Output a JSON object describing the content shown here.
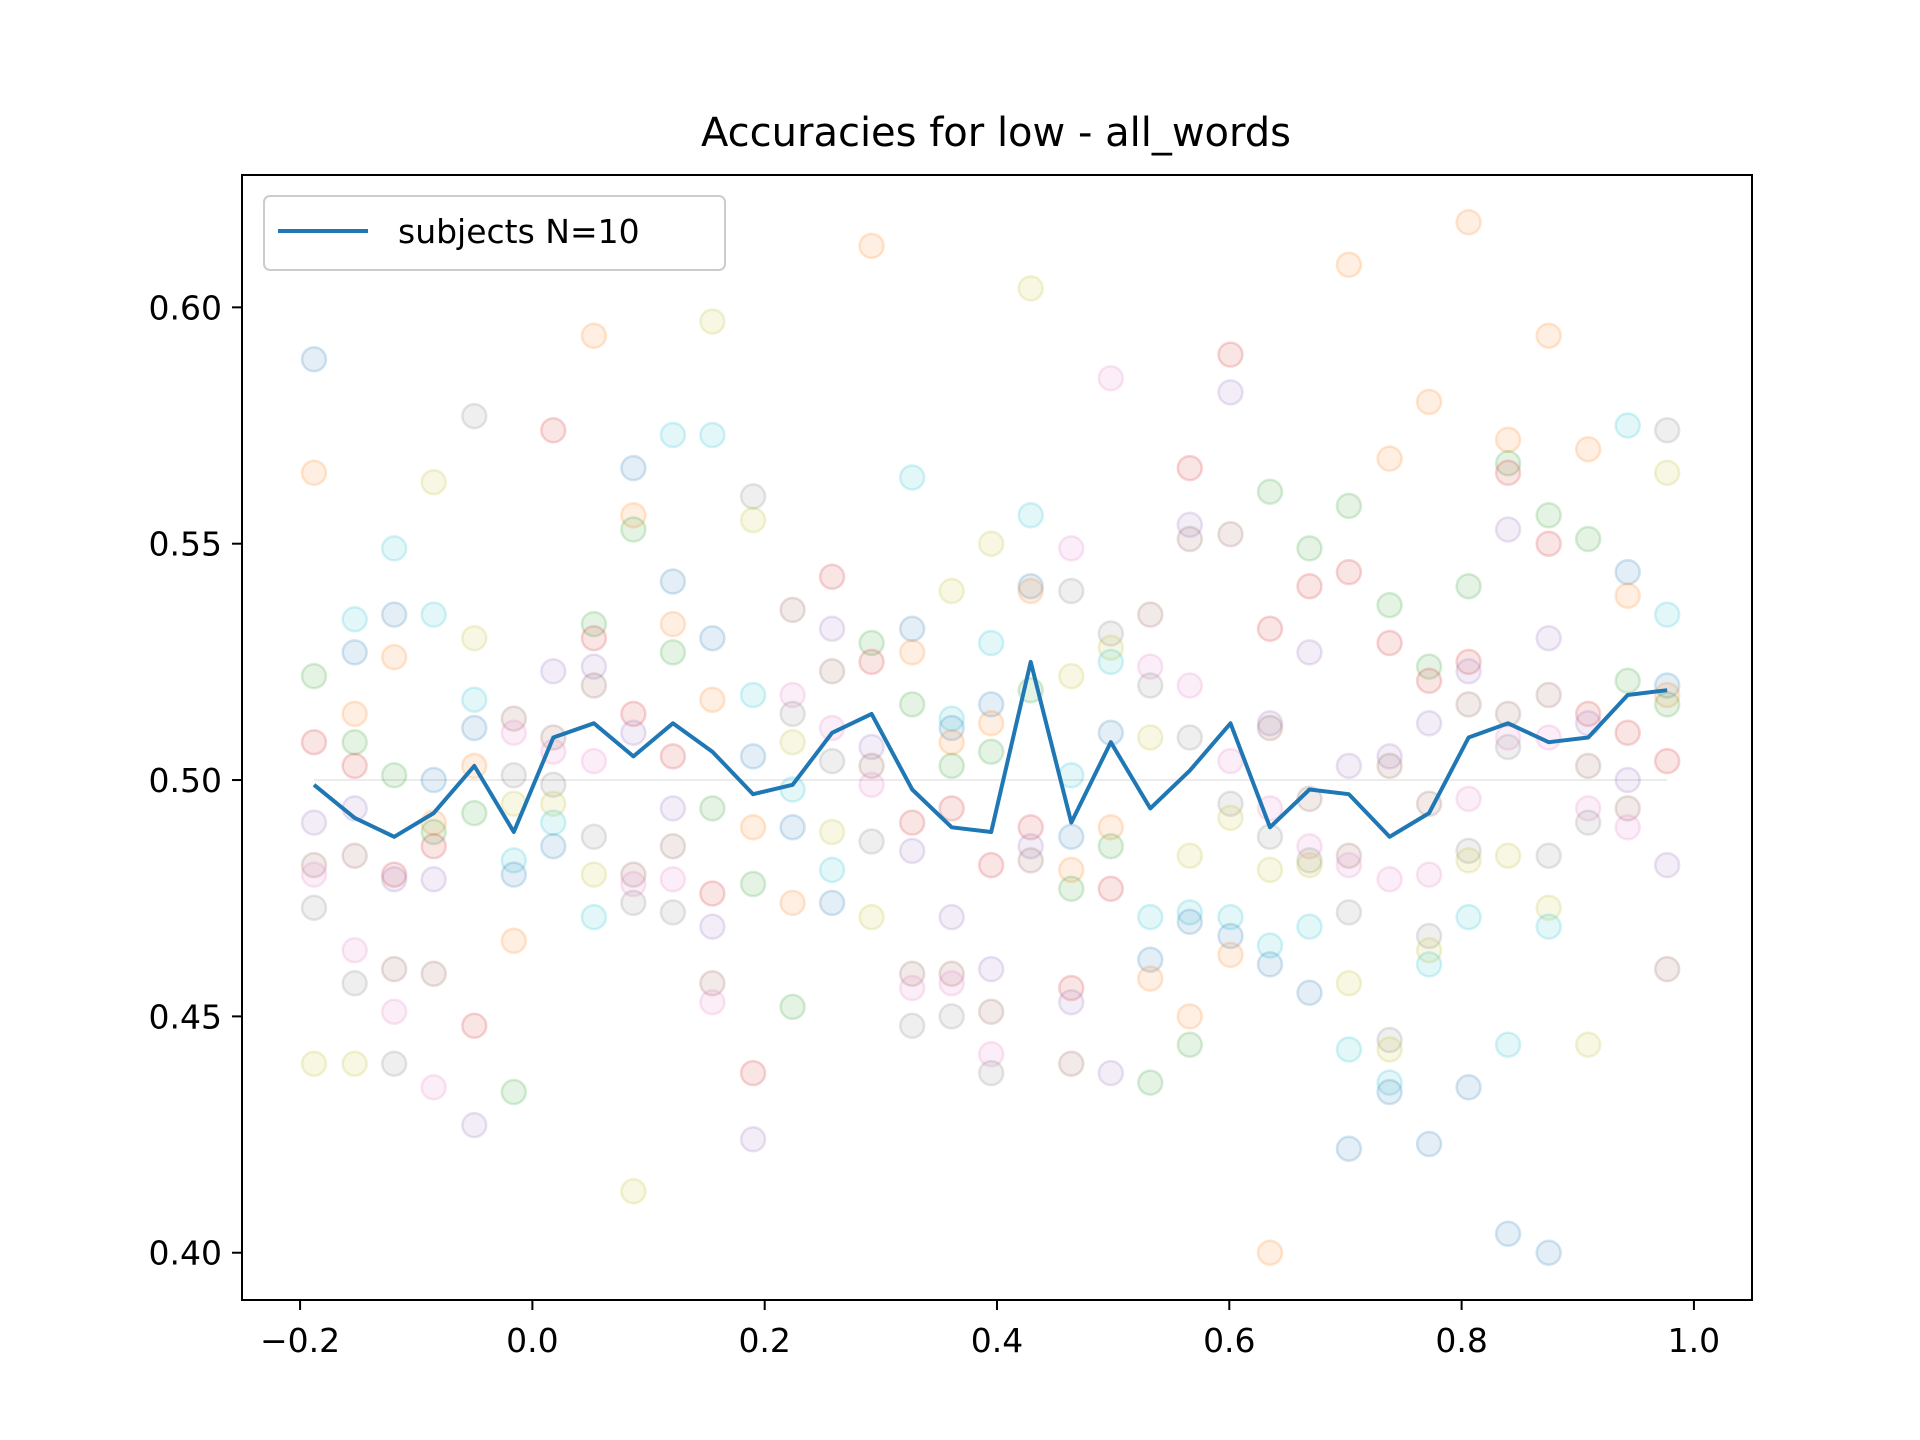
{
  "chart_data": {
    "type": "line",
    "title": "Accuracies for low - all_words",
    "xlabel": "",
    "ylabel": "",
    "xlim": [
      -0.25,
      1.05
    ],
    "ylim": [
      0.39,
      0.628
    ],
    "xticks": [
      -0.2,
      0.0,
      0.2,
      0.4,
      0.6,
      0.8,
      1.0
    ],
    "xtick_labels": [
      "−0.2",
      "0.0",
      "0.2",
      "0.4",
      "0.6",
      "0.8",
      "1.0"
    ],
    "yticks": [
      0.4,
      0.45,
      0.5,
      0.55,
      0.6
    ],
    "ytick_labels": [
      "0.40",
      "0.45",
      "0.50",
      "0.55",
      "0.60"
    ],
    "grid": false,
    "legend_position": "top-left",
    "reference_line": 0.5,
    "series": [
      {
        "name": "subjects N=10",
        "color": "#1f77b4",
        "x": [
          -0.188,
          -0.153,
          -0.119,
          -0.085,
          -0.05,
          -0.016,
          0.018,
          0.053,
          0.087,
          0.121,
          0.155,
          0.19,
          0.224,
          0.258,
          0.292,
          0.327,
          0.361,
          0.395,
          0.429,
          0.464,
          0.498,
          0.532,
          0.566,
          0.601,
          0.635,
          0.669,
          0.703,
          0.738,
          0.772,
          0.806,
          0.84,
          0.875,
          0.909,
          0.943,
          0.977
        ],
        "y": [
          0.499,
          0.492,
          0.488,
          0.493,
          0.503,
          0.489,
          0.509,
          0.512,
          0.505,
          0.512,
          0.506,
          0.497,
          0.499,
          0.51,
          0.514,
          0.498,
          0.49,
          0.489,
          0.525,
          0.491,
          0.508,
          0.494,
          0.502,
          0.512,
          0.49,
          0.498,
          0.497,
          0.488,
          0.493,
          0.509,
          0.512,
          0.508,
          0.509,
          0.518,
          0.519
        ]
      }
    ],
    "scatter_points": [
      [
        -0.188,
        0.589
      ],
      [
        -0.188,
        0.565
      ],
      [
        -0.188,
        0.522
      ],
      [
        -0.188,
        0.508
      ],
      [
        -0.188,
        0.491
      ],
      [
        -0.188,
        0.482
      ],
      [
        -0.188,
        0.48
      ],
      [
        -0.188,
        0.473
      ],
      [
        -0.188,
        0.44
      ],
      [
        -0.153,
        0.534
      ],
      [
        -0.153,
        0.527
      ],
      [
        -0.153,
        0.514
      ],
      [
        -0.153,
        0.508
      ],
      [
        -0.153,
        0.503
      ],
      [
        -0.153,
        0.494
      ],
      [
        -0.153,
        0.484
      ],
      [
        -0.153,
        0.464
      ],
      [
        -0.153,
        0.457
      ],
      [
        -0.153,
        0.44
      ],
      [
        -0.119,
        0.549
      ],
      [
        -0.119,
        0.535
      ],
      [
        -0.119,
        0.526
      ],
      [
        -0.119,
        0.501
      ],
      [
        -0.119,
        0.48
      ],
      [
        -0.119,
        0.479
      ],
      [
        -0.119,
        0.46
      ],
      [
        -0.119,
        0.451
      ],
      [
        -0.119,
        0.44
      ],
      [
        -0.085,
        0.563
      ],
      [
        -0.085,
        0.535
      ],
      [
        -0.085,
        0.5
      ],
      [
        -0.085,
        0.491
      ],
      [
        -0.085,
        0.489
      ],
      [
        -0.085,
        0.486
      ],
      [
        -0.085,
        0.479
      ],
      [
        -0.085,
        0.459
      ],
      [
        -0.085,
        0.435
      ],
      [
        -0.05,
        0.577
      ],
      [
        -0.05,
        0.53
      ],
      [
        -0.05,
        0.517
      ],
      [
        -0.05,
        0.511
      ],
      [
        -0.05,
        0.503
      ],
      [
        -0.05,
        0.493
      ],
      [
        -0.05,
        0.448
      ],
      [
        -0.05,
        0.427
      ],
      [
        -0.016,
        0.513
      ],
      [
        -0.016,
        0.51
      ],
      [
        -0.016,
        0.501
      ],
      [
        -0.016,
        0.495
      ],
      [
        -0.016,
        0.483
      ],
      [
        -0.016,
        0.48
      ],
      [
        -0.016,
        0.466
      ],
      [
        -0.016,
        0.434
      ],
      [
        0.018,
        0.574
      ],
      [
        0.018,
        0.523
      ],
      [
        0.018,
        0.509
      ],
      [
        0.018,
        0.506
      ],
      [
        0.018,
        0.499
      ],
      [
        0.018,
        0.495
      ],
      [
        0.018,
        0.491
      ],
      [
        0.018,
        0.486
      ],
      [
        0.053,
        0.594
      ],
      [
        0.053,
        0.533
      ],
      [
        0.053,
        0.53
      ],
      [
        0.053,
        0.524
      ],
      [
        0.053,
        0.52
      ],
      [
        0.053,
        0.504
      ],
      [
        0.053,
        0.488
      ],
      [
        0.053,
        0.48
      ],
      [
        0.053,
        0.471
      ],
      [
        0.087,
        0.566
      ],
      [
        0.087,
        0.556
      ],
      [
        0.087,
        0.553
      ],
      [
        0.087,
        0.514
      ],
      [
        0.087,
        0.51
      ],
      [
        0.087,
        0.48
      ],
      [
        0.087,
        0.478
      ],
      [
        0.087,
        0.474
      ],
      [
        0.087,
        0.413
      ],
      [
        0.121,
        0.573
      ],
      [
        0.121,
        0.542
      ],
      [
        0.121,
        0.533
      ],
      [
        0.121,
        0.527
      ],
      [
        0.121,
        0.505
      ],
      [
        0.121,
        0.494
      ],
      [
        0.121,
        0.486
      ],
      [
        0.121,
        0.479
      ],
      [
        0.121,
        0.472
      ],
      [
        0.155,
        0.597
      ],
      [
        0.155,
        0.573
      ],
      [
        0.155,
        0.53
      ],
      [
        0.155,
        0.517
      ],
      [
        0.155,
        0.494
      ],
      [
        0.155,
        0.476
      ],
      [
        0.155,
        0.469
      ],
      [
        0.155,
        0.457
      ],
      [
        0.155,
        0.453
      ],
      [
        0.19,
        0.56
      ],
      [
        0.19,
        0.555
      ],
      [
        0.19,
        0.518
      ],
      [
        0.19,
        0.505
      ],
      [
        0.19,
        0.49
      ],
      [
        0.19,
        0.478
      ],
      [
        0.19,
        0.438
      ],
      [
        0.19,
        0.424
      ],
      [
        0.224,
        0.536
      ],
      [
        0.224,
        0.518
      ],
      [
        0.224,
        0.514
      ],
      [
        0.224,
        0.508
      ],
      [
        0.224,
        0.498
      ],
      [
        0.224,
        0.49
      ],
      [
        0.224,
        0.474
      ],
      [
        0.224,
        0.452
      ],
      [
        0.258,
        0.543
      ],
      [
        0.258,
        0.532
      ],
      [
        0.258,
        0.523
      ],
      [
        0.258,
        0.511
      ],
      [
        0.258,
        0.504
      ],
      [
        0.258,
        0.489
      ],
      [
        0.258,
        0.481
      ],
      [
        0.258,
        0.474
      ],
      [
        0.292,
        0.613
      ],
      [
        0.292,
        0.529
      ],
      [
        0.292,
        0.525
      ],
      [
        0.292,
        0.507
      ],
      [
        0.292,
        0.503
      ],
      [
        0.292,
        0.499
      ],
      [
        0.292,
        0.487
      ],
      [
        0.292,
        0.471
      ],
      [
        0.327,
        0.564
      ],
      [
        0.327,
        0.532
      ],
      [
        0.327,
        0.527
      ],
      [
        0.327,
        0.516
      ],
      [
        0.327,
        0.491
      ],
      [
        0.327,
        0.485
      ],
      [
        0.327,
        0.459
      ],
      [
        0.327,
        0.456
      ],
      [
        0.327,
        0.448
      ],
      [
        0.361,
        0.54
      ],
      [
        0.361,
        0.513
      ],
      [
        0.361,
        0.511
      ],
      [
        0.361,
        0.508
      ],
      [
        0.361,
        0.503
      ],
      [
        0.361,
        0.494
      ],
      [
        0.361,
        0.471
      ],
      [
        0.361,
        0.459
      ],
      [
        0.361,
        0.457
      ],
      [
        0.361,
        0.45
      ],
      [
        0.395,
        0.55
      ],
      [
        0.395,
        0.529
      ],
      [
        0.395,
        0.516
      ],
      [
        0.395,
        0.512
      ],
      [
        0.395,
        0.506
      ],
      [
        0.395,
        0.482
      ],
      [
        0.395,
        0.46
      ],
      [
        0.395,
        0.451
      ],
      [
        0.395,
        0.442
      ],
      [
        0.395,
        0.438
      ],
      [
        0.429,
        0.604
      ],
      [
        0.429,
        0.556
      ],
      [
        0.429,
        0.541
      ],
      [
        0.429,
        0.54
      ],
      [
        0.429,
        0.519
      ],
      [
        0.429,
        0.49
      ],
      [
        0.429,
        0.486
      ],
      [
        0.429,
        0.483
      ],
      [
        0.464,
        0.549
      ],
      [
        0.464,
        0.54
      ],
      [
        0.464,
        0.522
      ],
      [
        0.464,
        0.501
      ],
      [
        0.464,
        0.488
      ],
      [
        0.464,
        0.481
      ],
      [
        0.464,
        0.477
      ],
      [
        0.464,
        0.456
      ],
      [
        0.464,
        0.453
      ],
      [
        0.464,
        0.44
      ],
      [
        0.498,
        0.585
      ],
      [
        0.498,
        0.531
      ],
      [
        0.498,
        0.528
      ],
      [
        0.498,
        0.525
      ],
      [
        0.498,
        0.51
      ],
      [
        0.498,
        0.49
      ],
      [
        0.498,
        0.486
      ],
      [
        0.498,
        0.477
      ],
      [
        0.498,
        0.438
      ],
      [
        0.532,
        0.535
      ],
      [
        0.532,
        0.524
      ],
      [
        0.532,
        0.52
      ],
      [
        0.532,
        0.509
      ],
      [
        0.532,
        0.471
      ],
      [
        0.532,
        0.462
      ],
      [
        0.532,
        0.458
      ],
      [
        0.532,
        0.436
      ],
      [
        0.566,
        0.566
      ],
      [
        0.566,
        0.554
      ],
      [
        0.566,
        0.551
      ],
      [
        0.566,
        0.52
      ],
      [
        0.566,
        0.509
      ],
      [
        0.566,
        0.484
      ],
      [
        0.566,
        0.472
      ],
      [
        0.566,
        0.47
      ],
      [
        0.566,
        0.45
      ],
      [
        0.566,
        0.444
      ],
      [
        0.601,
        0.59
      ],
      [
        0.601,
        0.582
      ],
      [
        0.601,
        0.552
      ],
      [
        0.601,
        0.504
      ],
      [
        0.601,
        0.495
      ],
      [
        0.601,
        0.492
      ],
      [
        0.601,
        0.471
      ],
      [
        0.601,
        0.467
      ],
      [
        0.601,
        0.463
      ],
      [
        0.635,
        0.561
      ],
      [
        0.635,
        0.532
      ],
      [
        0.635,
        0.512
      ],
      [
        0.635,
        0.511
      ],
      [
        0.635,
        0.494
      ],
      [
        0.635,
        0.488
      ],
      [
        0.635,
        0.481
      ],
      [
        0.635,
        0.465
      ],
      [
        0.635,
        0.461
      ],
      [
        0.635,
        0.4
      ],
      [
        0.669,
        0.549
      ],
      [
        0.669,
        0.541
      ],
      [
        0.669,
        0.527
      ],
      [
        0.669,
        0.496
      ],
      [
        0.669,
        0.486
      ],
      [
        0.669,
        0.483
      ],
      [
        0.669,
        0.482
      ],
      [
        0.669,
        0.469
      ],
      [
        0.669,
        0.455
      ],
      [
        0.703,
        0.609
      ],
      [
        0.703,
        0.558
      ],
      [
        0.703,
        0.544
      ],
      [
        0.703,
        0.503
      ],
      [
        0.703,
        0.484
      ],
      [
        0.703,
        0.482
      ],
      [
        0.703,
        0.472
      ],
      [
        0.703,
        0.457
      ],
      [
        0.703,
        0.443
      ],
      [
        0.703,
        0.422
      ],
      [
        0.738,
        0.568
      ],
      [
        0.738,
        0.537
      ],
      [
        0.738,
        0.529
      ],
      [
        0.738,
        0.505
      ],
      [
        0.738,
        0.503
      ],
      [
        0.738,
        0.479
      ],
      [
        0.738,
        0.445
      ],
      [
        0.738,
        0.443
      ],
      [
        0.738,
        0.436
      ],
      [
        0.738,
        0.434
      ],
      [
        0.772,
        0.58
      ],
      [
        0.772,
        0.524
      ],
      [
        0.772,
        0.521
      ],
      [
        0.772,
        0.512
      ],
      [
        0.772,
        0.495
      ],
      [
        0.772,
        0.48
      ],
      [
        0.772,
        0.467
      ],
      [
        0.772,
        0.464
      ],
      [
        0.772,
        0.461
      ],
      [
        0.772,
        0.423
      ],
      [
        0.806,
        0.618
      ],
      [
        0.806,
        0.541
      ],
      [
        0.806,
        0.525
      ],
      [
        0.806,
        0.523
      ],
      [
        0.806,
        0.516
      ],
      [
        0.806,
        0.496
      ],
      [
        0.806,
        0.485
      ],
      [
        0.806,
        0.483
      ],
      [
        0.806,
        0.471
      ],
      [
        0.806,
        0.435
      ],
      [
        0.84,
        0.572
      ],
      [
        0.84,
        0.567
      ],
      [
        0.84,
        0.565
      ],
      [
        0.84,
        0.553
      ],
      [
        0.84,
        0.514
      ],
      [
        0.84,
        0.509
      ],
      [
        0.84,
        0.507
      ],
      [
        0.84,
        0.484
      ],
      [
        0.84,
        0.444
      ],
      [
        0.84,
        0.404
      ],
      [
        0.875,
        0.594
      ],
      [
        0.875,
        0.556
      ],
      [
        0.875,
        0.55
      ],
      [
        0.875,
        0.53
      ],
      [
        0.875,
        0.518
      ],
      [
        0.875,
        0.509
      ],
      [
        0.875,
        0.484
      ],
      [
        0.875,
        0.473
      ],
      [
        0.875,
        0.469
      ],
      [
        0.875,
        0.4
      ],
      [
        0.909,
        0.57
      ],
      [
        0.909,
        0.551
      ],
      [
        0.909,
        0.514
      ],
      [
        0.909,
        0.512
      ],
      [
        0.909,
        0.503
      ],
      [
        0.909,
        0.494
      ],
      [
        0.909,
        0.491
      ],
      [
        0.909,
        0.444
      ],
      [
        0.943,
        0.575
      ],
      [
        0.943,
        0.544
      ],
      [
        0.943,
        0.539
      ],
      [
        0.943,
        0.521
      ],
      [
        0.943,
        0.51
      ],
      [
        0.943,
        0.5
      ],
      [
        0.943,
        0.494
      ],
      [
        0.943,
        0.49
      ],
      [
        0.977,
        0.574
      ],
      [
        0.977,
        0.565
      ],
      [
        0.977,
        0.535
      ],
      [
        0.977,
        0.52
      ],
      [
        0.977,
        0.518
      ],
      [
        0.977,
        0.516
      ],
      [
        0.977,
        0.504
      ],
      [
        0.977,
        0.482
      ],
      [
        0.977,
        0.46
      ]
    ],
    "scatter_palette": [
      "#1f77b4",
      "#ff7f0e",
      "#2ca02c",
      "#d62728",
      "#9467bd",
      "#8c564b",
      "#e377c2",
      "#7f7f7f",
      "#bcbd22",
      "#17becf"
    ],
    "scatter_alpha": 0.12
  }
}
